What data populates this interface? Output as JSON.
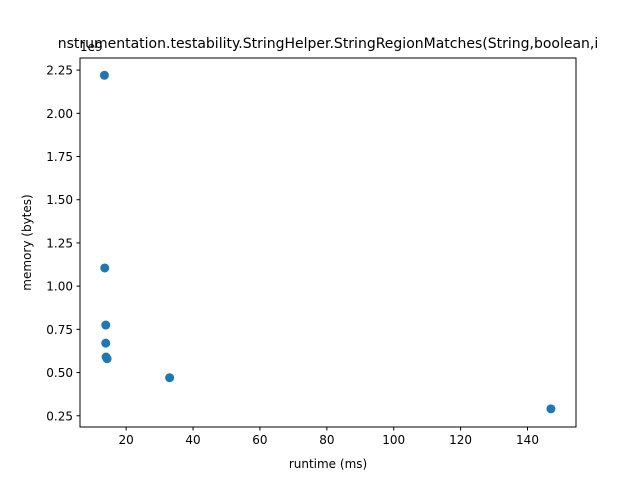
{
  "chart_data": {
    "type": "scatter",
    "title": "nstrumentation.testability.StringHelper.StringRegionMatches(String,boolean,i",
    "xlabel": "runtime (ms)",
    "ylabel": "memory (bytes)",
    "y_offset_label": "1e9",
    "xlim": [
      6.2,
      154.5
    ],
    "ylim": [
      0.185,
      2.32
    ],
    "x_ticks": [
      20,
      40,
      60,
      80,
      100,
      120,
      140
    ],
    "x_tick_labels": [
      "20",
      "40",
      "60",
      "80",
      "100",
      "120",
      "140"
    ],
    "y_ticks": [
      0.25,
      0.5,
      0.75,
      1.0,
      1.25,
      1.5,
      1.75,
      2.0,
      2.25
    ],
    "y_tick_labels": [
      "0.25",
      "0.50",
      "0.75",
      "1.00",
      "1.25",
      "1.50",
      "1.75",
      "2.00",
      "2.25"
    ],
    "grid": false,
    "legend": "none",
    "marker_color": "#1f77b4",
    "points": [
      {
        "x": 13.5,
        "y": 2.22
      },
      {
        "x": 13.6,
        "y": 1.105
      },
      {
        "x": 13.9,
        "y": 0.775
      },
      {
        "x": 13.9,
        "y": 0.67
      },
      {
        "x": 14.0,
        "y": 0.59
      },
      {
        "x": 14.3,
        "y": 0.58
      },
      {
        "x": 33.0,
        "y": 0.47
      },
      {
        "x": 147.0,
        "y": 0.29
      }
    ]
  }
}
